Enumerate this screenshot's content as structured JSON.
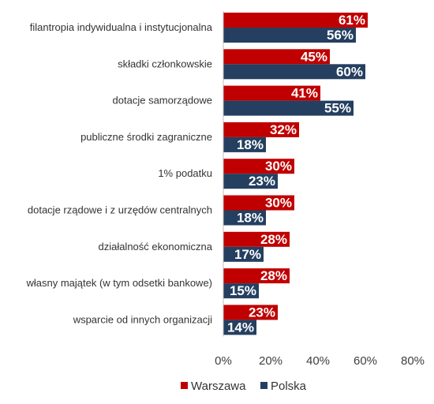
{
  "chart_data": {
    "type": "bar",
    "orientation": "horizontal",
    "categories": [
      "filantropia indywidualna i instytucjonalna",
      "składki członkowskie",
      "dotacje samorządowe",
      "publiczne środki zagraniczne",
      "1% podatku",
      "dotacje rządowe i z urzędów centralnych",
      "działalność ekonomiczna",
      "własny majątek (w tym odsetki bankowe)",
      "wsparcie od innych organizacji"
    ],
    "series": [
      {
        "name": "Warszawa",
        "color": "#c00000",
        "values": [
          61,
          45,
          41,
          32,
          30,
          30,
          28,
          28,
          23
        ]
      },
      {
        "name": "Polska",
        "color": "#243f60",
        "values": [
          56,
          60,
          55,
          18,
          23,
          18,
          17,
          15,
          14
        ]
      }
    ],
    "value_suffix": "%",
    "xlim": [
      0,
      80
    ],
    "x_ticks": [
      "0%",
      "20%",
      "40%",
      "60%",
      "80%"
    ],
    "grid": false,
    "legend_position": "bottom"
  }
}
